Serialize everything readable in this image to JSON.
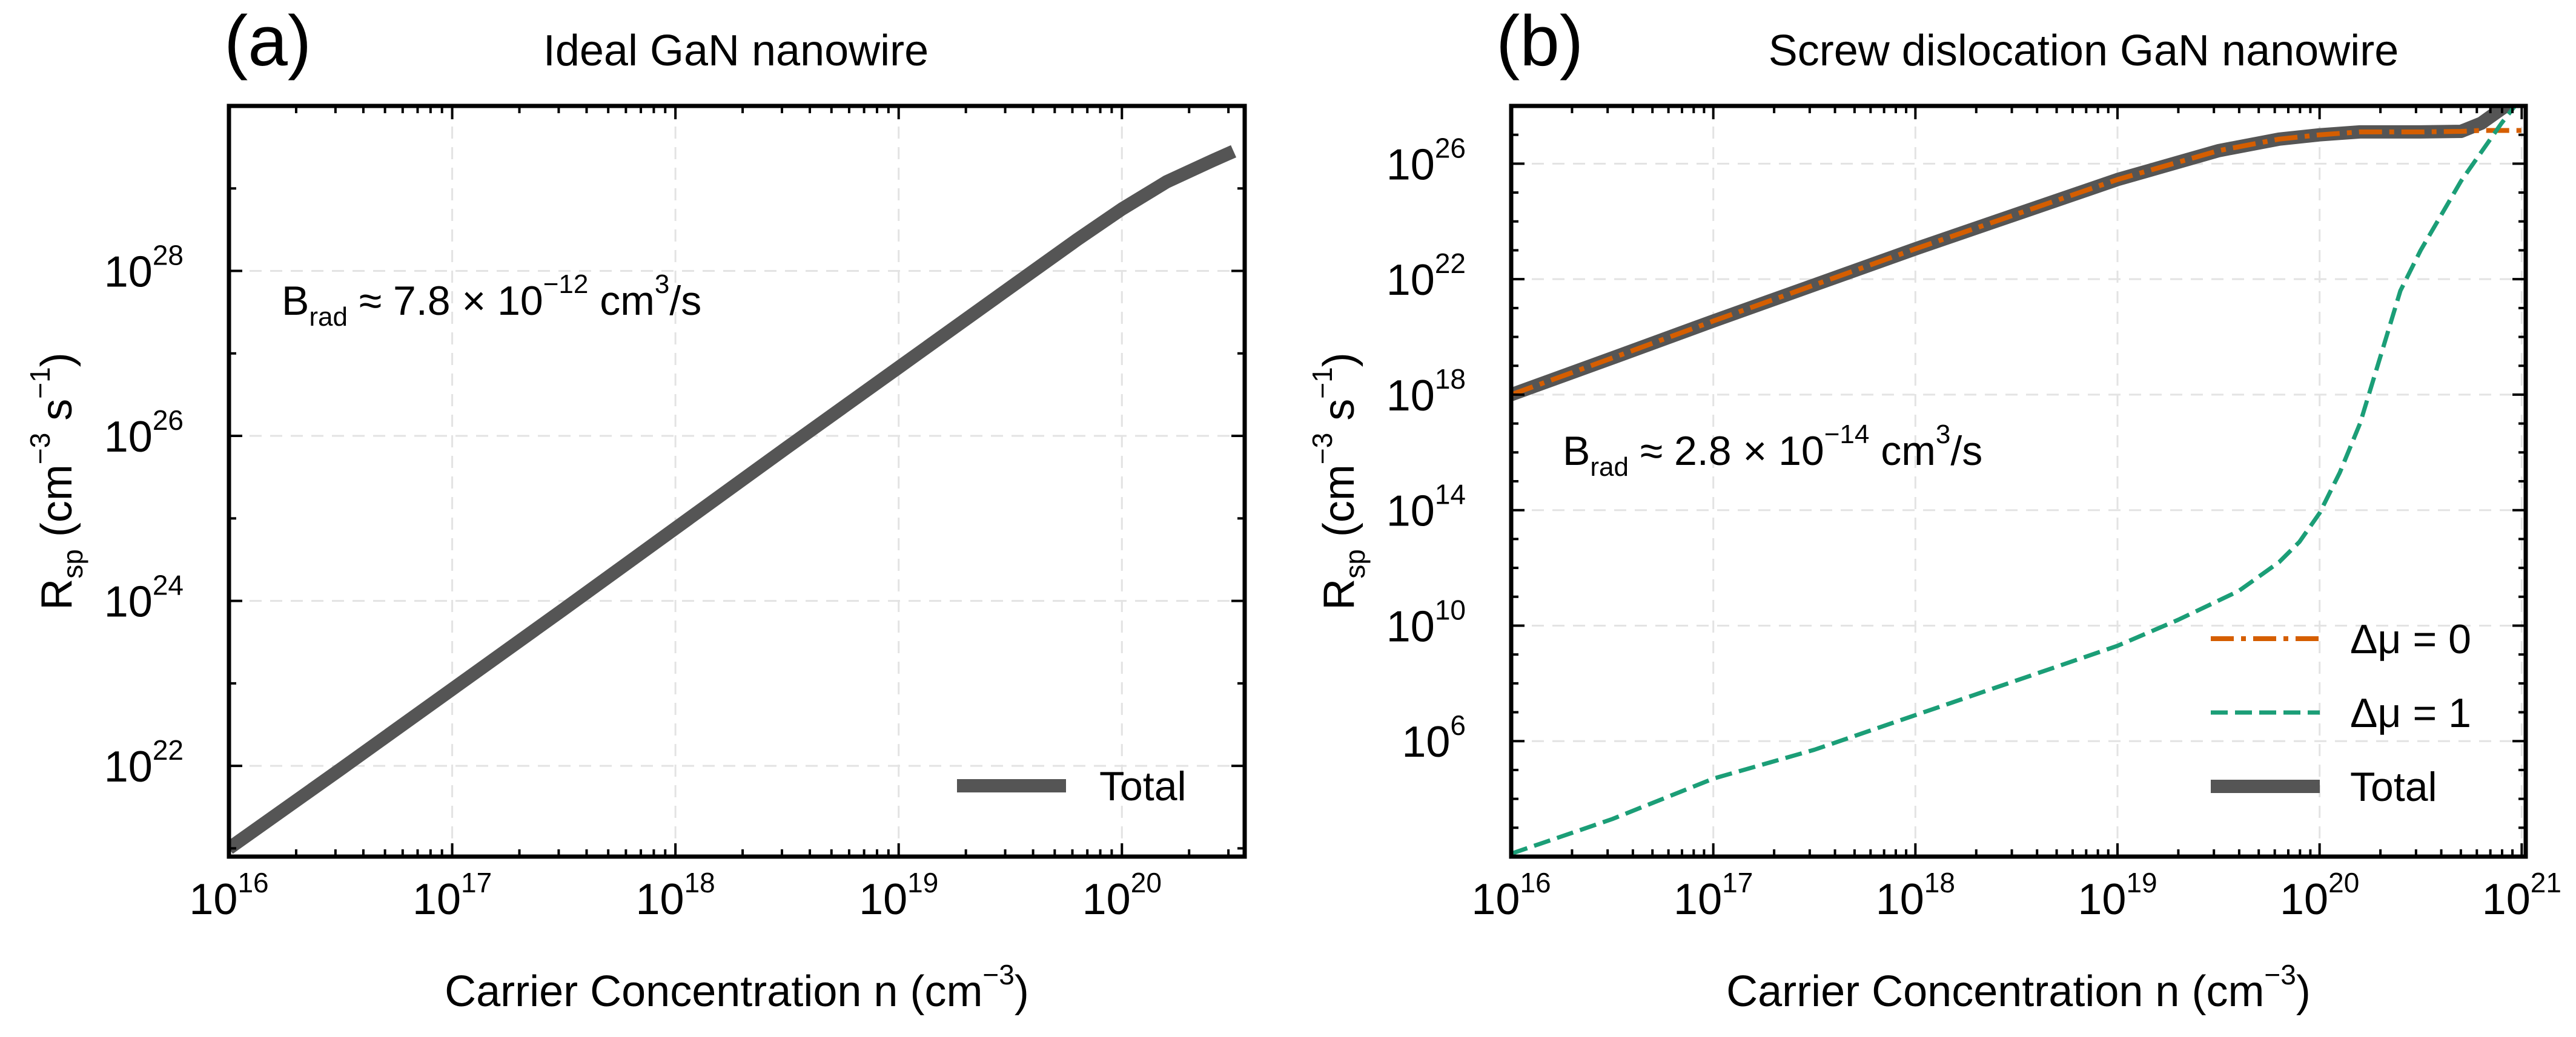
{
  "chart_data": [
    {
      "type": "line",
      "panel_label": "(a)",
      "title": "Ideal GaN nanowire",
      "xlabel": "Carrier Concentration n (cm",
      "xlabel_exp": "−3",
      "xlabel_close": ")",
      "ylabel": "R",
      "ylabel_sub": "sp",
      "ylabel_unit": " (cm",
      "ylabel_exp1": "−3",
      "ylabel_mid": " s",
      "ylabel_exp2": "−1",
      "ylabel_close": ")",
      "xscale": "log",
      "yscale": "log",
      "xlim_log10": [
        16,
        20.55
      ],
      "ylim_log10": [
        20.9,
        30.0
      ],
      "xticks": [
        {
          "base": "10",
          "exp": "16",
          "log": 16
        },
        {
          "base": "10",
          "exp": "17",
          "log": 17
        },
        {
          "base": "10",
          "exp": "18",
          "log": 18
        },
        {
          "base": "10",
          "exp": "19",
          "log": 19
        },
        {
          "base": "10",
          "exp": "20",
          "log": 20
        }
      ],
      "yticks": [
        {
          "base": "10",
          "exp": "22",
          "log": 22
        },
        {
          "base": "10",
          "exp": "24",
          "log": 24
        },
        {
          "base": "10",
          "exp": "26",
          "log": 26
        },
        {
          "base": "10",
          "exp": "28",
          "log": 28
        }
      ],
      "grid": true,
      "annotation": {
        "B": "B",
        "sub": "rad",
        "approx": " ≈ 7.8 × 10",
        "exp": "−12",
        "unit": " cm",
        "unit_exp": "3",
        "tail": "/s"
      },
      "legend_position": "lower right",
      "series": [
        {
          "name": "Total",
          "color": "#555555",
          "style": "solid",
          "x_log10": [
            16.0,
            16.5,
            17.0,
            17.5,
            18.0,
            18.5,
            19.0,
            19.5,
            19.8,
            20.0,
            20.2,
            20.4,
            20.5
          ],
          "y_log10": [
            21.0,
            21.96,
            22.93,
            23.9,
            24.88,
            25.86,
            26.83,
            27.8,
            28.38,
            28.75,
            29.08,
            29.33,
            29.45
          ]
        }
      ]
    },
    {
      "type": "line",
      "panel_label": "(b)",
      "title": "Screw dislocation GaN nanowire",
      "xlabel": "Carrier Concentration n (cm",
      "xlabel_exp": "−3",
      "xlabel_close": ")",
      "ylabel": "R",
      "ylabel_sub": "sp",
      "ylabel_unit": " (cm",
      "ylabel_exp1": "−3",
      "ylabel_mid": " s",
      "ylabel_exp2": "−1",
      "ylabel_close": ")",
      "xscale": "log",
      "yscale": "log",
      "xlim_log10": [
        16,
        21.02
      ],
      "ylim_log10": [
        2.0,
        28.0
      ],
      "xticks": [
        {
          "base": "10",
          "exp": "16",
          "log": 16
        },
        {
          "base": "10",
          "exp": "17",
          "log": 17
        },
        {
          "base": "10",
          "exp": "18",
          "log": 18
        },
        {
          "base": "10",
          "exp": "19",
          "log": 19
        },
        {
          "base": "10",
          "exp": "20",
          "log": 20
        },
        {
          "base": "10",
          "exp": "21",
          "log": 21
        }
      ],
      "yticks": [
        {
          "base": "10",
          "exp": "6",
          "log": 6
        },
        {
          "base": "10",
          "exp": "10",
          "log": 10
        },
        {
          "base": "10",
          "exp": "14",
          "log": 14
        },
        {
          "base": "10",
          "exp": "18",
          "log": 18
        },
        {
          "base": "10",
          "exp": "22",
          "log": 22
        },
        {
          "base": "10",
          "exp": "26",
          "log": 26
        }
      ],
      "grid": true,
      "annotation": {
        "B": "B",
        "sub": "rad",
        "approx": " ≈ 2.8 × 10",
        "exp": "−14",
        "unit": " cm",
        "unit_exp": "3",
        "tail": "/s"
      },
      "legend_position": "lower right",
      "series": [
        {
          "name": "Total",
          "color": "#555555",
          "style": "solid",
          "x_log10": [
            16.0,
            16.5,
            17.0,
            17.5,
            18.0,
            18.5,
            19.0,
            19.5,
            19.8,
            20.0,
            20.2,
            20.5,
            20.7,
            20.8,
            20.9,
            21.0
          ],
          "y_log10": [
            18.0,
            19.27,
            20.55,
            21.8,
            23.05,
            24.25,
            25.45,
            26.45,
            26.85,
            27.0,
            27.1,
            27.1,
            27.12,
            27.4,
            27.9,
            28.35
          ]
        },
        {
          "name": "Δμ = 0",
          "color": "#d55e00",
          "style": "dashdot",
          "x_log10": [
            16.0,
            16.5,
            17.0,
            17.5,
            18.0,
            18.5,
            19.0,
            19.5,
            19.8,
            20.0,
            20.2,
            20.5,
            20.7,
            20.8,
            20.9,
            21.0
          ],
          "y_log10": [
            18.0,
            19.27,
            20.55,
            21.8,
            23.05,
            24.25,
            25.45,
            26.45,
            26.85,
            27.0,
            27.1,
            27.1,
            27.12,
            27.15,
            27.15,
            27.15
          ]
        },
        {
          "name": "Δμ = 1",
          "color": "#1b9e77",
          "style": "dashed",
          "x_log10": [
            16.0,
            16.5,
            17.0,
            17.5,
            18.0,
            18.5,
            19.0,
            19.3,
            19.6,
            19.8,
            19.9,
            20.0,
            20.1,
            20.2,
            20.3,
            20.4,
            20.5,
            20.6,
            20.7,
            20.8,
            20.9,
            21.0
          ],
          "y_log10": [
            2.1,
            3.3,
            4.7,
            5.7,
            6.9,
            8.1,
            9.3,
            10.2,
            11.2,
            12.2,
            12.9,
            13.9,
            15.3,
            17.0,
            19.3,
            21.6,
            23.0,
            24.2,
            25.4,
            26.4,
            27.4,
            28.3
          ]
        }
      ]
    }
  ]
}
